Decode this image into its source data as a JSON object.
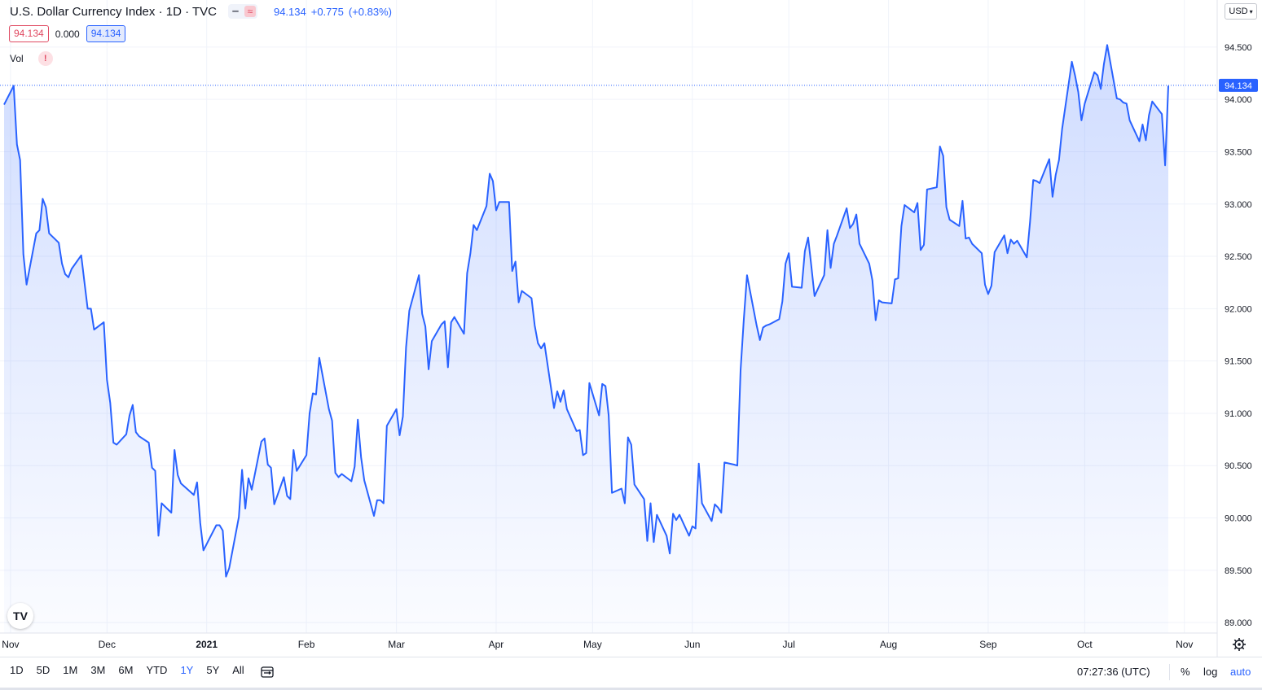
{
  "header": {
    "title": "U.S. Dollar Currency Index · 1D · TVC",
    "last": "94.134",
    "change": "+0.775",
    "change_pct": "(+0.83%)"
  },
  "ohlc": {
    "bid": "94.134",
    "spread": "0.000",
    "ask": "94.134"
  },
  "volume": {
    "label": "Vol",
    "warning": "!"
  },
  "currency": "USD",
  "logo": "TV",
  "last_price_label": "94.134",
  "range_buttons": [
    "1D",
    "5D",
    "1M",
    "3M",
    "6M",
    "YTD",
    "1Y",
    "5Y",
    "All"
  ],
  "active_range": "1Y",
  "clock": "07:27:36 (UTC)",
  "options": {
    "percent": "%",
    "log": "log",
    "auto": "auto"
  },
  "colors": {
    "line": "#2962ff",
    "fill": "#2962ff",
    "bid": "#e04a62",
    "ask": "#2962ff",
    "grid": "#f0f3fa"
  },
  "chart_data": {
    "type": "area",
    "title": "U.S. Dollar Currency Index · 1D · TVC",
    "ylim": [
      88.9,
      94.95
    ],
    "y_ticks": [
      89.0,
      89.5,
      90.0,
      90.5,
      91.0,
      91.5,
      92.0,
      92.5,
      93.0,
      93.5,
      94.0,
      94.5
    ],
    "y_tick_labels": [
      "89.000",
      "89.500",
      "90.000",
      "90.500",
      "91.000",
      "91.500",
      "92.000",
      "92.500",
      "93.000",
      "93.500",
      "94.000",
      "94.500"
    ],
    "x_tick_labels": [
      "Nov",
      "Dec",
      "2021",
      "Feb",
      "Mar",
      "Apr",
      "May",
      "Jun",
      "Jul",
      "Aug",
      "Sep",
      "Oct",
      "Nov"
    ],
    "x_tick_dates": [
      "2020-11-01",
      "2020-12-01",
      "2021-01-01",
      "2021-02-01",
      "2021-03-01",
      "2021-04-01",
      "2021-05-01",
      "2021-06-01",
      "2021-07-01",
      "2021-08-01",
      "2021-09-01",
      "2021-10-01",
      "2021-11-01"
    ],
    "last_value": 94.134,
    "series": [
      {
        "points": [
          [
            "2020-10-30",
            93.95
          ],
          [
            "2020-11-02",
            94.13
          ],
          [
            "2020-11-03",
            93.57
          ],
          [
            "2020-11-04",
            93.42
          ],
          [
            "2020-11-05",
            92.52
          ],
          [
            "2020-11-06",
            92.23
          ],
          [
            "2020-11-09",
            92.72
          ],
          [
            "2020-11-10",
            92.75
          ],
          [
            "2020-11-11",
            93.05
          ],
          [
            "2020-11-12",
            92.97
          ],
          [
            "2020-11-13",
            92.72
          ],
          [
            "2020-11-16",
            92.63
          ],
          [
            "2020-11-17",
            92.43
          ],
          [
            "2020-11-18",
            92.33
          ],
          [
            "2020-11-19",
            92.3
          ],
          [
            "2020-11-20",
            92.38
          ],
          [
            "2020-11-23",
            92.51
          ],
          [
            "2020-11-24",
            92.25
          ],
          [
            "2020-11-25",
            92.0
          ],
          [
            "2020-11-26",
            92.0
          ],
          [
            "2020-11-27",
            91.8
          ],
          [
            "2020-11-30",
            91.87
          ],
          [
            "2020-12-01",
            91.32
          ],
          [
            "2020-12-02",
            91.1
          ],
          [
            "2020-12-03",
            90.72
          ],
          [
            "2020-12-04",
            90.7
          ],
          [
            "2020-12-07",
            90.8
          ],
          [
            "2020-12-08",
            90.98
          ],
          [
            "2020-12-09",
            91.08
          ],
          [
            "2020-12-10",
            90.82
          ],
          [
            "2020-12-11",
            90.78
          ],
          [
            "2020-12-14",
            90.72
          ],
          [
            "2020-12-15",
            90.48
          ],
          [
            "2020-12-16",
            90.45
          ],
          [
            "2020-12-17",
            89.83
          ],
          [
            "2020-12-18",
            90.14
          ],
          [
            "2020-12-21",
            90.05
          ],
          [
            "2020-12-22",
            90.65
          ],
          [
            "2020-12-23",
            90.41
          ],
          [
            "2020-12-24",
            90.33
          ],
          [
            "2020-12-28",
            90.22
          ],
          [
            "2020-12-29",
            90.34
          ],
          [
            "2020-12-30",
            89.95
          ],
          [
            "2020-12-31",
            89.69
          ],
          [
            "2021-01-04",
            89.93
          ],
          [
            "2021-01-05",
            89.93
          ],
          [
            "2021-01-06",
            89.88
          ],
          [
            "2021-01-07",
            89.44
          ],
          [
            "2021-01-08",
            89.52
          ],
          [
            "2021-01-11",
            90.01
          ],
          [
            "2021-01-12",
            90.46
          ],
          [
            "2021-01-13",
            90.09
          ],
          [
            "2021-01-14",
            90.38
          ],
          [
            "2021-01-15",
            90.27
          ],
          [
            "2021-01-18",
            90.73
          ],
          [
            "2021-01-19",
            90.76
          ],
          [
            "2021-01-20",
            90.51
          ],
          [
            "2021-01-21",
            90.48
          ],
          [
            "2021-01-22",
            90.13
          ],
          [
            "2021-01-25",
            90.39
          ],
          [
            "2021-01-26",
            90.21
          ],
          [
            "2021-01-27",
            90.18
          ],
          [
            "2021-01-28",
            90.65
          ],
          [
            "2021-01-29",
            90.45
          ],
          [
            "2021-02-01",
            90.6
          ],
          [
            "2021-02-02",
            91.0
          ],
          [
            "2021-02-03",
            91.19
          ],
          [
            "2021-02-04",
            91.18
          ],
          [
            "2021-02-05",
            91.53
          ],
          [
            "2021-02-08",
            91.04
          ],
          [
            "2021-02-09",
            90.93
          ],
          [
            "2021-02-10",
            90.43
          ],
          [
            "2021-02-11",
            90.39
          ],
          [
            "2021-02-12",
            90.42
          ],
          [
            "2021-02-15",
            90.35
          ],
          [
            "2021-02-16",
            90.49
          ],
          [
            "2021-02-17",
            90.94
          ],
          [
            "2021-02-18",
            90.58
          ],
          [
            "2021-02-19",
            90.36
          ],
          [
            "2021-02-22",
            90.02
          ],
          [
            "2021-02-23",
            90.17
          ],
          [
            "2021-02-24",
            90.17
          ],
          [
            "2021-02-25",
            90.14
          ],
          [
            "2021-02-26",
            90.88
          ],
          [
            "2021-03-01",
            91.04
          ],
          [
            "2021-03-02",
            90.79
          ],
          [
            "2021-03-03",
            90.97
          ],
          [
            "2021-03-04",
            91.63
          ],
          [
            "2021-03-05",
            91.98
          ],
          [
            "2021-03-08",
            92.32
          ],
          [
            "2021-03-09",
            91.95
          ],
          [
            "2021-03-10",
            91.83
          ],
          [
            "2021-03-11",
            91.42
          ],
          [
            "2021-03-12",
            91.69
          ],
          [
            "2021-03-15",
            91.85
          ],
          [
            "2021-03-16",
            91.88
          ],
          [
            "2021-03-17",
            91.44
          ],
          [
            "2021-03-18",
            91.87
          ],
          [
            "2021-03-19",
            91.92
          ],
          [
            "2021-03-22",
            91.76
          ],
          [
            "2021-03-23",
            92.34
          ],
          [
            "2021-03-24",
            92.53
          ],
          [
            "2021-03-25",
            92.8
          ],
          [
            "2021-03-26",
            92.75
          ],
          [
            "2021-03-29",
            92.98
          ],
          [
            "2021-03-30",
            93.29
          ],
          [
            "2021-03-31",
            93.22
          ],
          [
            "2021-04-01",
            92.94
          ],
          [
            "2021-04-02",
            93.02
          ],
          [
            "2021-04-05",
            93.02
          ],
          [
            "2021-04-06",
            92.36
          ],
          [
            "2021-04-07",
            92.45
          ],
          [
            "2021-04-08",
            92.06
          ],
          [
            "2021-04-09",
            92.17
          ],
          [
            "2021-04-12",
            92.1
          ],
          [
            "2021-04-13",
            91.84
          ],
          [
            "2021-04-14",
            91.67
          ],
          [
            "2021-04-15",
            91.62
          ],
          [
            "2021-04-16",
            91.67
          ],
          [
            "2021-04-19",
            91.05
          ],
          [
            "2021-04-20",
            91.21
          ],
          [
            "2021-04-21",
            91.11
          ],
          [
            "2021-04-22",
            91.22
          ],
          [
            "2021-04-23",
            91.04
          ],
          [
            "2021-04-26",
            90.83
          ],
          [
            "2021-04-27",
            90.84
          ],
          [
            "2021-04-28",
            90.6
          ],
          [
            "2021-04-29",
            90.62
          ],
          [
            "2021-04-30",
            91.29
          ],
          [
            "2021-05-03",
            90.98
          ],
          [
            "2021-05-04",
            91.28
          ],
          [
            "2021-05-05",
            91.26
          ],
          [
            "2021-05-06",
            90.98
          ],
          [
            "2021-05-07",
            90.24
          ],
          [
            "2021-05-10",
            90.28
          ],
          [
            "2021-05-11",
            90.14
          ],
          [
            "2021-05-12",
            90.77
          ],
          [
            "2021-05-13",
            90.7
          ],
          [
            "2021-05-14",
            90.32
          ],
          [
            "2021-05-17",
            90.18
          ],
          [
            "2021-05-18",
            89.78
          ],
          [
            "2021-05-19",
            90.14
          ],
          [
            "2021-05-20",
            89.77
          ],
          [
            "2021-05-21",
            90.03
          ],
          [
            "2021-05-24",
            89.83
          ],
          [
            "2021-05-25",
            89.66
          ],
          [
            "2021-05-26",
            90.04
          ],
          [
            "2021-05-27",
            89.98
          ],
          [
            "2021-05-28",
            90.03
          ],
          [
            "2021-05-31",
            89.83
          ],
          [
            "2021-06-01",
            89.92
          ],
          [
            "2021-06-02",
            89.9
          ],
          [
            "2021-06-03",
            90.52
          ],
          [
            "2021-06-04",
            90.14
          ],
          [
            "2021-06-07",
            89.97
          ],
          [
            "2021-06-08",
            90.13
          ],
          [
            "2021-06-09",
            90.1
          ],
          [
            "2021-06-10",
            90.05
          ],
          [
            "2021-06-11",
            90.53
          ],
          [
            "2021-06-14",
            90.51
          ],
          [
            "2021-06-15",
            90.5
          ],
          [
            "2021-06-16",
            91.41
          ],
          [
            "2021-06-17",
            91.89
          ],
          [
            "2021-06-18",
            92.32
          ],
          [
            "2021-06-21",
            91.84
          ],
          [
            "2021-06-22",
            91.7
          ],
          [
            "2021-06-23",
            91.82
          ],
          [
            "2021-06-24",
            91.84
          ],
          [
            "2021-06-25",
            91.85
          ],
          [
            "2021-06-28",
            91.9
          ],
          [
            "2021-06-29",
            92.07
          ],
          [
            "2021-06-30",
            92.43
          ],
          [
            "2021-07-01",
            92.53
          ],
          [
            "2021-07-02",
            92.21
          ],
          [
            "2021-07-05",
            92.2
          ],
          [
            "2021-07-06",
            92.55
          ],
          [
            "2021-07-07",
            92.68
          ],
          [
            "2021-07-08",
            92.41
          ],
          [
            "2021-07-09",
            92.12
          ],
          [
            "2021-07-12",
            92.32
          ],
          [
            "2021-07-13",
            92.75
          ],
          [
            "2021-07-14",
            92.39
          ],
          [
            "2021-07-15",
            92.62
          ],
          [
            "2021-07-16",
            92.7
          ],
          [
            "2021-07-19",
            92.96
          ],
          [
            "2021-07-20",
            92.77
          ],
          [
            "2021-07-21",
            92.81
          ],
          [
            "2021-07-22",
            92.9
          ],
          [
            "2021-07-23",
            92.62
          ],
          [
            "2021-07-26",
            92.43
          ],
          [
            "2021-07-27",
            92.27
          ],
          [
            "2021-07-28",
            91.89
          ],
          [
            "2021-07-29",
            92.08
          ],
          [
            "2021-07-30",
            92.06
          ],
          [
            "2021-08-02",
            92.05
          ],
          [
            "2021-08-03",
            92.28
          ],
          [
            "2021-08-04",
            92.29
          ],
          [
            "2021-08-05",
            92.79
          ],
          [
            "2021-08-06",
            92.99
          ],
          [
            "2021-08-09",
            92.92
          ],
          [
            "2021-08-10",
            93.01
          ],
          [
            "2021-08-11",
            92.56
          ],
          [
            "2021-08-12",
            92.61
          ],
          [
            "2021-08-13",
            93.14
          ],
          [
            "2021-08-16",
            93.16
          ],
          [
            "2021-08-17",
            93.55
          ],
          [
            "2021-08-18",
            93.46
          ],
          [
            "2021-08-19",
            92.97
          ],
          [
            "2021-08-20",
            92.85
          ],
          [
            "2021-08-23",
            92.79
          ],
          [
            "2021-08-24",
            93.03
          ],
          [
            "2021-08-25",
            92.67
          ],
          [
            "2021-08-26",
            92.68
          ],
          [
            "2021-08-27",
            92.62
          ],
          [
            "2021-08-30",
            92.53
          ],
          [
            "2021-08-31",
            92.23
          ],
          [
            "2021-09-01",
            92.14
          ],
          [
            "2021-09-02",
            92.22
          ],
          [
            "2021-09-03",
            92.54
          ],
          [
            "2021-09-06",
            92.7
          ],
          [
            "2021-09-07",
            92.53
          ],
          [
            "2021-09-08",
            92.66
          ],
          [
            "2021-09-09",
            92.62
          ],
          [
            "2021-09-10",
            92.65
          ],
          [
            "2021-09-13",
            92.49
          ],
          [
            "2021-09-14",
            92.83
          ],
          [
            "2021-09-15",
            93.23
          ],
          [
            "2021-09-16",
            93.22
          ],
          [
            "2021-09-17",
            93.2
          ],
          [
            "2021-09-20",
            93.43
          ],
          [
            "2021-09-21",
            93.07
          ],
          [
            "2021-09-22",
            93.28
          ],
          [
            "2021-09-23",
            93.42
          ],
          [
            "2021-09-24",
            93.72
          ],
          [
            "2021-09-27",
            94.36
          ],
          [
            "2021-09-28",
            94.23
          ],
          [
            "2021-09-29",
            94.07
          ],
          [
            "2021-09-30",
            93.8
          ],
          [
            "2021-10-01",
            93.96
          ],
          [
            "2021-10-04",
            94.26
          ],
          [
            "2021-10-05",
            94.23
          ],
          [
            "2021-10-06",
            94.1
          ],
          [
            "2021-10-07",
            94.34
          ],
          [
            "2021-10-08",
            94.52
          ],
          [
            "2021-10-11",
            94.01
          ],
          [
            "2021-10-12",
            94.0
          ],
          [
            "2021-10-13",
            93.97
          ],
          [
            "2021-10-14",
            93.96
          ],
          [
            "2021-10-15",
            93.8
          ],
          [
            "2021-10-18",
            93.6
          ],
          [
            "2021-10-19",
            93.76
          ],
          [
            "2021-10-20",
            93.61
          ],
          [
            "2021-10-21",
            93.85
          ],
          [
            "2021-10-22",
            93.98
          ],
          [
            "2021-10-25",
            93.86
          ],
          [
            "2021-10-26",
            93.37
          ],
          [
            "2021-10-27",
            94.13
          ]
        ]
      }
    ]
  }
}
